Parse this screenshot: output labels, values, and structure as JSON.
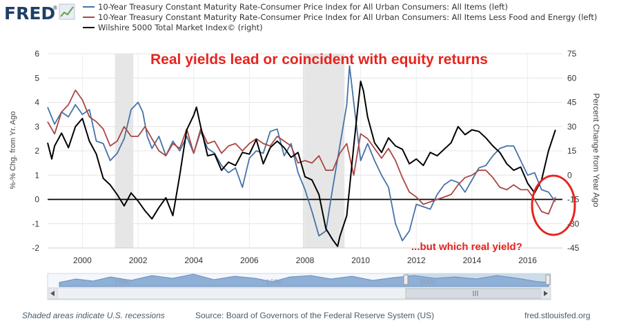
{
  "header": {
    "logo_text": "FRED",
    "logo_reg": "®"
  },
  "legend": [
    {
      "label": "10-Year Treasury Constant Maturity Rate-Consumer Price Index for All Urban Consumers: All Items (left)",
      "color": "#4572a7"
    },
    {
      "label": "10-Year Treasury Constant Maturity Rate-Consumer Price Index for All Urban Consumers: All Items Less Food and Energy (left)",
      "color": "#aa4643"
    },
    {
      "label": "Wilshire 5000 Total Market Index© (right)",
      "color": "#000000"
    }
  ],
  "annotations": {
    "main": "Real yields lead or coincident with equity returns",
    "secondary": "...but which real yield?"
  },
  "axes": {
    "left_title": "%-% Chg. from Yr. Ago",
    "right_title": "Percent Change from Year Ago",
    "left_ticks": [
      "6",
      "5",
      "4",
      "3",
      "2",
      "1",
      "0",
      "-1",
      "-2"
    ],
    "right_ticks": [
      "75",
      "60",
      "45",
      "30",
      "15",
      "0",
      "-15",
      "-30",
      "-45"
    ],
    "x_ticks": [
      "2000",
      "2002",
      "2004",
      "2006",
      "2008",
      "2010",
      "2012",
      "2014",
      "2016"
    ]
  },
  "navigator": {
    "labels": [
      "1960",
      "1980",
      "2000"
    ]
  },
  "footer": {
    "recessions_note": "Shaded areas indicate U.S. recessions",
    "source": "Source: Board of Governors of the Federal Reserve System (US)",
    "site": "fred.stlouisfed.org"
  },
  "colors": {
    "cpi_all": "#4572a7",
    "cpi_core": "#aa4643",
    "wilshire": "#000000",
    "recession": "#e6e6e6",
    "annotation": "#e8231d"
  },
  "chart_data": {
    "type": "line",
    "x_unit": "year",
    "xlim": [
      1998.75,
      2017.25
    ],
    "ylim_left": [
      -2,
      6
    ],
    "ylim_right": [
      -45,
      75
    ],
    "zero_line_left": 0,
    "recessions": [
      [
        2001.17,
        2001.83
      ],
      [
        2007.92,
        2009.42
      ]
    ],
    "series": [
      {
        "name": "10-Year Treasury Constant Maturity Rate-Consumer Price Index for All Urban Consumers: All Items (left)",
        "axis": "left",
        "x": [
          1998.75,
          1999.0,
          1999.25,
          1999.5,
          1999.75,
          2000.0,
          2000.25,
          2000.5,
          2000.75,
          2001.0,
          2001.25,
          2001.5,
          2001.75,
          2001.92,
          2002.0,
          2002.17,
          2002.33,
          2002.5,
          2002.75,
          2003.0,
          2003.25,
          2003.5,
          2003.75,
          2004.0,
          2004.25,
          2004.5,
          2004.75,
          2005.0,
          2005.25,
          2005.5,
          2005.75,
          2006.0,
          2006.25,
          2006.5,
          2006.75,
          2007.0,
          2007.25,
          2007.5,
          2007.75,
          2008.0,
          2008.25,
          2008.5,
          2008.75,
          2009.0,
          2009.25,
          2009.5,
          2009.6,
          2009.75,
          2010.0,
          2010.25,
          2010.5,
          2010.75,
          2011.0,
          2011.25,
          2011.5,
          2011.75,
          2012.0,
          2012.25,
          2012.5,
          2012.75,
          2013.0,
          2013.25,
          2013.5,
          2013.75,
          2014.0,
          2014.25,
          2014.5,
          2014.75,
          2015.0,
          2015.25,
          2015.5,
          2015.75,
          2016.0,
          2016.25,
          2016.5,
          2016.75,
          2017.0
        ],
        "values": [
          3.8,
          3.1,
          3.6,
          3.4,
          3.9,
          3.5,
          3.7,
          2.4,
          2.3,
          1.6,
          1.9,
          2.5,
          3.7,
          3.9,
          4.0,
          3.6,
          2.6,
          2.1,
          2.6,
          1.8,
          2.4,
          2.0,
          2.6,
          1.9,
          2.8,
          2.1,
          1.9,
          1.4,
          1.1,
          1.3,
          0.5,
          1.7,
          2.0,
          1.9,
          2.8,
          2.9,
          1.8,
          2.3,
          1.1,
          0.4,
          -0.5,
          -1.5,
          -1.3,
          0.5,
          2.2,
          3.9,
          5.5,
          4.0,
          1.6,
          2.3,
          1.6,
          1.0,
          0.5,
          -1.0,
          -1.7,
          -1.3,
          -0.2,
          -0.3,
          -0.4,
          0.2,
          0.6,
          0.8,
          0.7,
          0.3,
          0.8,
          1.3,
          1.4,
          1.8,
          2.1,
          2.2,
          2.2,
          1.6,
          1.0,
          1.1,
          0.4,
          0.3,
          -0.1
        ]
      },
      {
        "name": "10-Year Treasury Constant Maturity Rate-Consumer Price Index for All Urban Consumers: All Items Less Food and Energy (left)",
        "axis": "left",
        "x": [
          1998.75,
          1999.0,
          1999.25,
          1999.5,
          1999.75,
          2000.0,
          2000.25,
          2000.5,
          2000.75,
          2001.0,
          2001.25,
          2001.5,
          2001.75,
          2002.0,
          2002.25,
          2002.5,
          2002.75,
          2003.0,
          2003.25,
          2003.5,
          2003.75,
          2004.0,
          2004.25,
          2004.5,
          2004.75,
          2005.0,
          2005.25,
          2005.5,
          2005.75,
          2006.0,
          2006.25,
          2006.5,
          2006.75,
          2007.0,
          2007.25,
          2007.5,
          2007.75,
          2008.0,
          2008.25,
          2008.5,
          2008.75,
          2009.0,
          2009.25,
          2009.5,
          2009.75,
          2010.0,
          2010.25,
          2010.5,
          2010.75,
          2011.0,
          2011.25,
          2011.5,
          2011.75,
          2012.0,
          2012.25,
          2012.5,
          2012.75,
          2013.0,
          2013.25,
          2013.5,
          2013.75,
          2014.0,
          2014.25,
          2014.5,
          2014.75,
          2015.0,
          2015.25,
          2015.5,
          2015.75,
          2016.0,
          2016.25,
          2016.5,
          2016.75,
          2017.0
        ],
        "values": [
          3.2,
          2.7,
          3.6,
          3.9,
          4.5,
          4.1,
          3.4,
          3.2,
          2.9,
          2.2,
          2.4,
          3.0,
          2.6,
          2.6,
          3.0,
          2.5,
          2.0,
          1.8,
          2.3,
          2.1,
          2.9,
          1.9,
          2.9,
          2.3,
          2.4,
          1.9,
          2.2,
          2.3,
          2.0,
          2.3,
          2.5,
          2.3,
          2.2,
          2.6,
          2.4,
          2.2,
          1.5,
          1.6,
          1.5,
          1.8,
          1.2,
          1.2,
          1.9,
          2.3,
          1.0,
          2.7,
          2.5,
          2.1,
          1.7,
          2.1,
          1.6,
          0.9,
          0.3,
          0.1,
          -0.2,
          -0.1,
          0.0,
          0.1,
          0.2,
          0.6,
          0.9,
          1.0,
          1.2,
          1.2,
          0.9,
          0.5,
          0.4,
          0.6,
          0.4,
          0.4,
          0.0,
          -0.5,
          -0.6,
          0.1
        ]
      },
      {
        "name": "Wilshire 5000 Total Market Index© (right)",
        "axis": "right",
        "x": [
          1998.75,
          1998.9,
          1999.0,
          1999.25,
          1999.5,
          1999.75,
          2000.0,
          2000.25,
          2000.5,
          2000.75,
          2001.0,
          2001.25,
          2001.5,
          2001.75,
          2002.0,
          2002.25,
          2002.5,
          2002.75,
          2003.0,
          2003.25,
          2003.5,
          2003.75,
          2004.0,
          2004.1,
          2004.25,
          2004.5,
          2004.75,
          2005.0,
          2005.25,
          2005.5,
          2005.75,
          2006.0,
          2006.25,
          2006.5,
          2006.75,
          2007.0,
          2007.25,
          2007.5,
          2007.75,
          2008.0,
          2008.25,
          2008.5,
          2008.75,
          2009.0,
          2009.17,
          2009.25,
          2009.5,
          2009.75,
          2010.0,
          2010.1,
          2010.25,
          2010.5,
          2010.75,
          2011.0,
          2011.25,
          2011.5,
          2011.75,
          2012.0,
          2012.25,
          2012.5,
          2012.75,
          2013.0,
          2013.25,
          2013.5,
          2013.75,
          2014.0,
          2014.25,
          2014.5,
          2014.75,
          2015.0,
          2015.25,
          2015.5,
          2015.75,
          2016.0,
          2016.25,
          2016.5,
          2016.75,
          2017.0
        ],
        "values": [
          20,
          10,
          18,
          26,
          17,
          30,
          35,
          21,
          13,
          -2,
          -6,
          -12,
          -19,
          -11,
          -16,
          -22,
          -27,
          -20,
          -14,
          -25,
          0,
          28,
          37,
          42,
          30,
          12,
          13,
          3,
          8,
          6,
          14,
          13,
          22,
          7,
          17,
          21,
          17,
          11,
          14,
          -1,
          -3,
          -12,
          -33,
          -40,
          -44,
          -38,
          -25,
          18,
          58,
          52,
          36,
          20,
          14,
          23,
          18,
          16,
          7,
          10,
          6,
          14,
          12,
          16,
          20,
          30,
          25,
          28,
          27,
          23,
          18,
          14,
          7,
          3,
          5,
          -5,
          -11,
          -3,
          15,
          28
        ]
      }
    ]
  }
}
